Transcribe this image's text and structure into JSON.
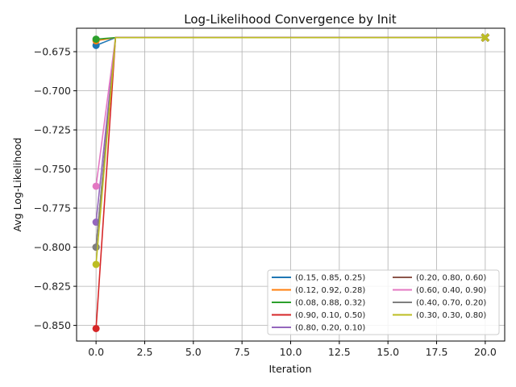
{
  "chart_data": {
    "type": "line",
    "title": "Log-Likelihood Convergence by Init",
    "xlabel": "Iteration",
    "ylabel": "Avg Log-Likelihood",
    "xlim": [
      -1,
      21
    ],
    "ylim": [
      -0.86,
      -0.66
    ],
    "xticks": [
      0,
      2.5,
      5,
      7.5,
      10,
      12.5,
      15,
      17.5,
      20
    ],
    "xtick_labels": [
      "0.0",
      "2.5",
      "5.0",
      "7.5",
      "10.0",
      "12.5",
      "15.0",
      "17.5",
      "20.0"
    ],
    "yticks": [
      -0.675,
      -0.7,
      -0.725,
      -0.75,
      -0.775,
      -0.8,
      -0.825,
      -0.85
    ],
    "ytick_labels": [
      "−0.675",
      "−0.700",
      "−0.725",
      "−0.750",
      "−0.775",
      "−0.800",
      "−0.825",
      "−0.850"
    ],
    "grid": true,
    "legend_placement": "lower-right",
    "legend_columns": 2,
    "series": [
      {
        "name": "(0.15, 0.85, 0.25)",
        "color": "#1f77b4",
        "x": [
          0,
          1,
          20
        ],
        "y": [
          -0.671,
          -0.666,
          -0.666
        ]
      },
      {
        "name": "(0.12, 0.92, 0.28)",
        "color": "#ff7f0e",
        "x": [
          0,
          1,
          20
        ],
        "y": [
          -0.668,
          -0.666,
          -0.666
        ]
      },
      {
        "name": "(0.08, 0.88, 0.32)",
        "color": "#2ca02c",
        "x": [
          0,
          1,
          20
        ],
        "y": [
          -0.667,
          -0.666,
          -0.666
        ]
      },
      {
        "name": "(0.90, 0.10, 0.50)",
        "color": "#d62728",
        "x": [
          0,
          1,
          20
        ],
        "y": [
          -0.852,
          -0.666,
          -0.666
        ]
      },
      {
        "name": "(0.80, 0.20, 0.10)",
        "color": "#9467bd",
        "x": [
          0,
          1,
          20
        ],
        "y": [
          -0.784,
          -0.666,
          -0.666
        ]
      },
      {
        "name": "(0.20, 0.80, 0.60)",
        "color": "#8c564b",
        "x": [
          0,
          1,
          20
        ],
        "y": [
          -0.8,
          -0.666,
          -0.666
        ]
      },
      {
        "name": "(0.60, 0.40, 0.90)",
        "color": "#e377c2",
        "x": [
          0,
          1,
          20
        ],
        "y": [
          -0.761,
          -0.666,
          -0.666
        ]
      },
      {
        "name": "(0.40, 0.70, 0.20)",
        "color": "#7f7f7f",
        "x": [
          0,
          1,
          20
        ],
        "y": [
          -0.8,
          -0.666,
          -0.666
        ]
      },
      {
        "name": "(0.30, 0.30, 0.80)",
        "color": "#bcbd22",
        "x": [
          0,
          1,
          20
        ],
        "y": [
          -0.811,
          -0.666,
          -0.666
        ]
      }
    ]
  }
}
